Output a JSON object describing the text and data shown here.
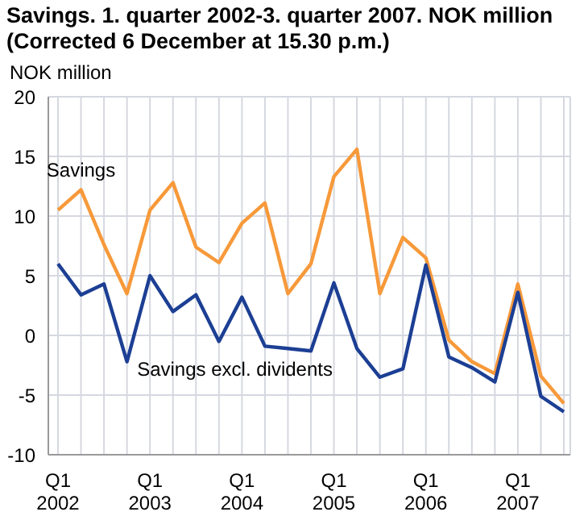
{
  "chart_data": {
    "type": "line",
    "title": "Savings. 1. quarter 2002-3. quarter 2007. NOK million (Corrected 6 December at 15.30 p.m.)",
    "ylabel": "NOK million",
    "categories": [
      "Q1 2002",
      null,
      null,
      null,
      "Q1 2003",
      null,
      null,
      null,
      "Q1 2004",
      null,
      null,
      null,
      "Q1 2005",
      null,
      null,
      null,
      "Q1 2006",
      null,
      null,
      null,
      "Q1 2007",
      null,
      null
    ],
    "series": [
      {
        "name": "Savings",
        "color": "#f7993a",
        "values": [
          10.5,
          12.2,
          7.6,
          3.5,
          10.5,
          12.8,
          7.4,
          6.1,
          9.4,
          11.1,
          3.5,
          6.0,
          13.3,
          15.6,
          3.5,
          8.2,
          6.5,
          -0.4,
          -2.2,
          -3.2,
          4.3,
          -3.4,
          -5.7
        ]
      },
      {
        "name": "Savings excl. dividents",
        "color": "#1c3f94",
        "values": [
          6.0,
          3.4,
          4.3,
          -2.2,
          5.0,
          2.0,
          3.4,
          -0.5,
          3.2,
          -0.9,
          -1.1,
          -1.3,
          4.4,
          -1.1,
          -3.5,
          -2.8,
          5.9,
          -1.8,
          -2.7,
          -3.9,
          3.6,
          -5.1,
          -6.4
        ]
      }
    ],
    "ylim": [
      -10,
      20
    ],
    "yticks": [
      -10,
      -5,
      0,
      5,
      10,
      15,
      20
    ],
    "grid": true,
    "legend": false,
    "marker": "none",
    "line_style": "solid"
  }
}
